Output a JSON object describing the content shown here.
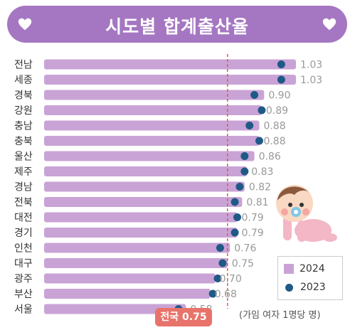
{
  "title": "시도별 합계출산율",
  "unit_note": "(가임 여자 1명당 명)",
  "national_label": "전국 0.75",
  "icons": [
    "heart-icon",
    "baby-illustration"
  ],
  "colors": {
    "banner": "#a577c2",
    "bar_2024": "#c9a3d6",
    "dot_2023": "#1f5a86",
    "reference": "#e05a4f"
  },
  "legend": {
    "series_2024": "2024",
    "series_2023": "2023"
  },
  "chart_data": {
    "type": "bar",
    "orientation": "horizontal",
    "title": "시도별 합계출산율",
    "categories": [
      "전남",
      "세종",
      "경북",
      "강원",
      "충남",
      "충북",
      "울산",
      "제주",
      "경남",
      "전북",
      "대전",
      "경기",
      "인천",
      "대구",
      "광주",
      "부산",
      "서울"
    ],
    "series": [
      {
        "name": "2024",
        "values": [
          1.03,
          1.03,
          0.9,
          0.89,
          0.88,
          0.88,
          0.86,
          0.83,
          0.82,
          0.81,
          0.79,
          0.79,
          0.76,
          0.75,
          0.7,
          0.68,
          0.58
        ]
      },
      {
        "name": "2023",
        "values": [
          0.97,
          0.97,
          0.86,
          0.89,
          0.84,
          0.88,
          0.82,
          0.82,
          0.8,
          0.78,
          0.79,
          0.78,
          0.72,
          0.73,
          0.71,
          0.69,
          0.55
        ]
      }
    ],
    "value_labels": [
      "1.03",
      "1.03",
      "0.90",
      "0.89",
      "0.88",
      "0.88",
      "0.86",
      "0.83",
      "0.82",
      "0.81",
      "0.79",
      "0.79",
      "0.76",
      "0.75",
      "0.70",
      "0.68",
      "0.58"
    ],
    "reference_line": {
      "label": "전국 0.75",
      "value": 0.75
    },
    "xlim": [
      0,
      1.06
    ],
    "legend_position": "bottom-right"
  }
}
